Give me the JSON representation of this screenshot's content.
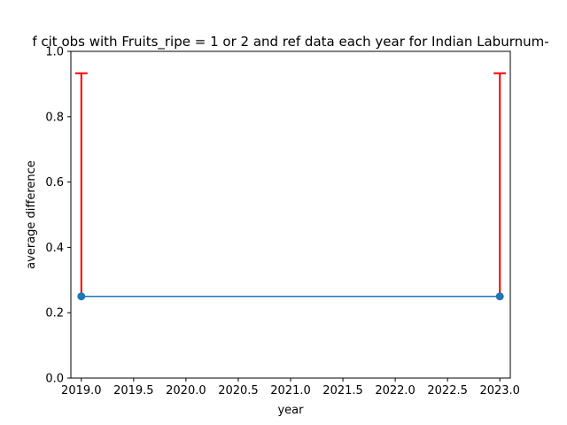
{
  "chart_data": {
    "type": "line",
    "title": "f cit obs with Fruits_ripe = 1 or 2 and ref data each year for Indian Laburnum-",
    "xlabel": "year",
    "ylabel": "average difference",
    "xlim": [
      2018.9,
      2023.1
    ],
    "ylim": [
      0,
      1
    ],
    "x_ticks": [
      2019.0,
      2019.5,
      2020.0,
      2020.5,
      2021.0,
      2021.5,
      2022.0,
      2022.5,
      2023.0
    ],
    "x_tick_labels": [
      "2019.0",
      "2019.5",
      "2020.0",
      "2020.5",
      "2021.0",
      "2021.5",
      "2022.0",
      "2022.5",
      "2023.0"
    ],
    "y_ticks": [
      0,
      0.2,
      0.4,
      0.6,
      0.8,
      1.0
    ],
    "y_tick_labels": [
      "0.0",
      "0.2",
      "0.4",
      "0.6",
      "0.8",
      "1.0"
    ],
    "grid": false,
    "series": [
      {
        "x": [
          2019,
          2023
        ],
        "y": [
          0.25,
          0.25
        ],
        "line_color": "#1f77b4",
        "marker_color": "#1f77b4",
        "error_color": "#ff0000",
        "error_lower": [
          0.0,
          0.0
        ],
        "error_upper": [
          0.683,
          0.683
        ]
      }
    ]
  }
}
